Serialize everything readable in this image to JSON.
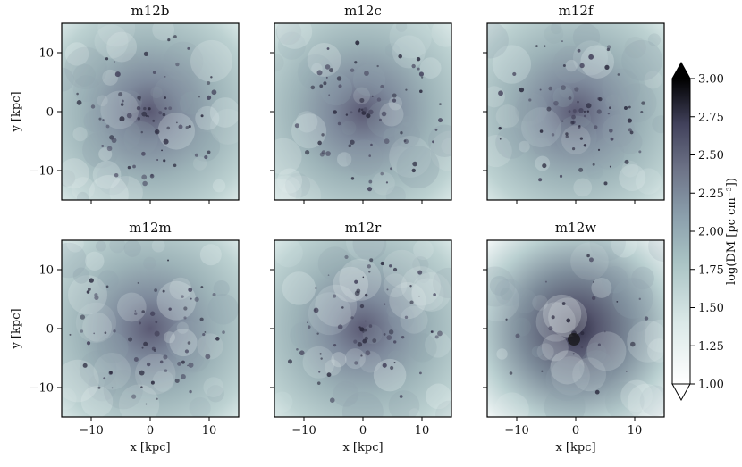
{
  "figure": {
    "ylabel": "y [kpc]",
    "xlabel": "x [kpc]",
    "colorbar": {
      "label": "log(DM [pc cm⁻³])",
      "min": 1.0,
      "max": 3.0,
      "ticks": [
        "1.00",
        "1.25",
        "1.50",
        "1.75",
        "2.00",
        "2.25",
        "2.50",
        "2.75",
        "3.00"
      ],
      "extend": "both",
      "colormap": "bone_r"
    }
  },
  "chart_data": [
    {
      "type": "heatmap",
      "title": "m12b",
      "xlim": [
        -15,
        15
      ],
      "ylim": [
        -15,
        15
      ],
      "xticks": [
        -10,
        0,
        10
      ],
      "yticks": [
        -10,
        0,
        10
      ],
      "xticklabels": [
        "",
        "",
        ""
      ],
      "yticklabels": [
        "−10",
        "0",
        "10"
      ],
      "xlabel": "",
      "ylabel": "y [kpc]"
    },
    {
      "type": "heatmap",
      "title": "m12c",
      "xlim": [
        -15,
        15
      ],
      "ylim": [
        -15,
        15
      ],
      "xticks": [
        -10,
        0,
        10
      ],
      "yticks": [
        -10,
        0,
        10
      ],
      "xticklabels": [
        "",
        "",
        ""
      ],
      "yticklabels": [
        "",
        "",
        ""
      ],
      "xlabel": "",
      "ylabel": ""
    },
    {
      "type": "heatmap",
      "title": "m12f",
      "xlim": [
        -15,
        15
      ],
      "ylim": [
        -15,
        15
      ],
      "xticks": [
        -10,
        0,
        10
      ],
      "yticks": [
        -10,
        0,
        10
      ],
      "xticklabels": [
        "",
        "",
        ""
      ],
      "yticklabels": [
        "",
        "",
        ""
      ],
      "xlabel": "",
      "ylabel": ""
    },
    {
      "type": "heatmap",
      "title": "m12m",
      "xlim": [
        -15,
        15
      ],
      "ylim": [
        -15,
        15
      ],
      "xticks": [
        -10,
        0,
        10
      ],
      "yticks": [
        -10,
        0,
        10
      ],
      "xticklabels": [
        "−10",
        "0",
        "10"
      ],
      "yticklabels": [
        "−10",
        "0",
        "10"
      ],
      "xlabel": "x [kpc]",
      "ylabel": "y [kpc]"
    },
    {
      "type": "heatmap",
      "title": "m12r",
      "xlim": [
        -15,
        15
      ],
      "ylim": [
        -15,
        15
      ],
      "xticks": [
        -10,
        0,
        10
      ],
      "yticks": [
        -10,
        0,
        10
      ],
      "xticklabels": [
        "−10",
        "0",
        "10"
      ],
      "yticklabels": [
        "",
        "",
        ""
      ],
      "xlabel": "x [kpc]",
      "ylabel": ""
    },
    {
      "type": "heatmap",
      "title": "m12w",
      "xlim": [
        -15,
        15
      ],
      "ylim": [
        -15,
        15
      ],
      "xticks": [
        -10,
        0,
        10
      ],
      "yticks": [
        -10,
        0,
        10
      ],
      "xticklabels": [
        "−10",
        "0",
        "10"
      ],
      "yticklabels": [
        "",
        "",
        ""
      ],
      "xlabel": "x [kpc]",
      "ylabel": ""
    }
  ]
}
